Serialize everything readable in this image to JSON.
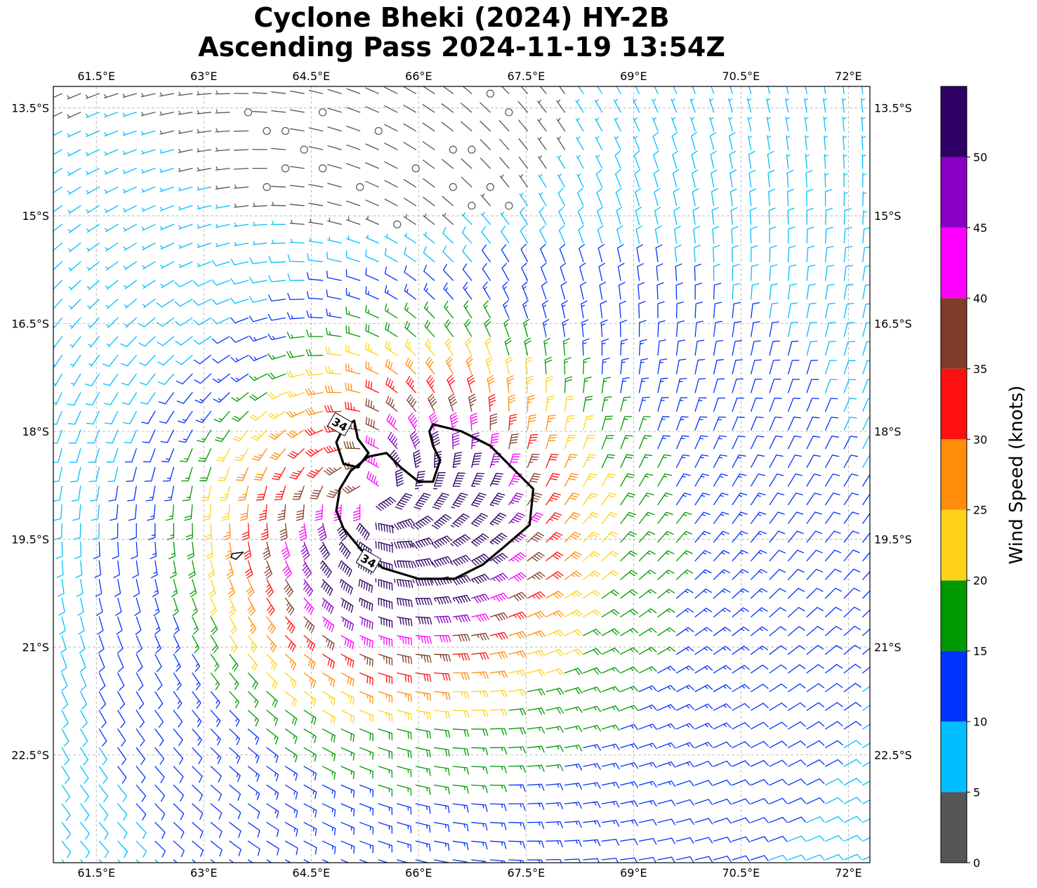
{
  "title": {
    "line1": "Cyclone Bheki (2024) HY-2B",
    "line2": "Ascending Pass 2024-11-19 13:54Z"
  },
  "map": {
    "lon_range": [
      60.9,
      72.3
    ],
    "lat_range": [
      -24.0,
      -13.2
    ],
    "lon_ticks": [
      61.5,
      63,
      64.5,
      66,
      67.5,
      69,
      70.5,
      72
    ],
    "lon_tick_labels": [
      "61.5°E",
      "63°E",
      "64.5°E",
      "66°E",
      "67.5°E",
      "69°E",
      "70.5°E",
      "72°E"
    ],
    "lat_ticks": [
      -13.5,
      -15,
      -16.5,
      -18,
      -19.5,
      -21,
      -22.5
    ],
    "lat_tick_labels": [
      "13.5°S",
      "15°S",
      "16.5°S",
      "18°S",
      "19.5°S",
      "21°S",
      "22.5°S"
    ],
    "gridlines": true,
    "cyclone_center": {
      "lon": 65.4,
      "lat": -19.0
    },
    "wind_field": "cyclonic (clockwise) flow around the center; stronger on the eastern and southern side",
    "contour_level_label": "34",
    "contour_34kt_main": [
      [
        66.2,
        -17.9
      ],
      [
        66.6,
        -18.0
      ],
      [
        67.0,
        -18.2
      ],
      [
        67.3,
        -18.5
      ],
      [
        67.6,
        -18.8
      ],
      [
        67.55,
        -19.3
      ],
      [
        67.2,
        -19.6
      ],
      [
        66.9,
        -19.85
      ],
      [
        66.5,
        -20.05
      ],
      [
        66.0,
        -20.05
      ],
      [
        65.5,
        -19.9
      ],
      [
        65.2,
        -19.65
      ],
      [
        64.95,
        -19.35
      ],
      [
        64.85,
        -19.1
      ],
      [
        64.9,
        -18.8
      ],
      [
        65.05,
        -18.55
      ],
      [
        65.3,
        -18.35
      ],
      [
        65.55,
        -18.3
      ],
      [
        65.75,
        -18.5
      ],
      [
        66.0,
        -18.7
      ],
      [
        66.2,
        -18.7
      ],
      [
        66.3,
        -18.4
      ],
      [
        66.2,
        -18.2
      ],
      [
        66.15,
        -18.0
      ],
      [
        66.2,
        -17.9
      ]
    ],
    "contour_34kt_small": [
      [
        64.95,
        -17.95
      ],
      [
        65.1,
        -17.85
      ],
      [
        65.15,
        -18.1
      ],
      [
        65.3,
        -18.3
      ],
      [
        65.15,
        -18.5
      ],
      [
        64.95,
        -18.45
      ],
      [
        64.85,
        -18.15
      ],
      [
        64.95,
        -17.95
      ]
    ],
    "contour_small_blob": [
      [
        63.4,
        -19.7
      ],
      [
        63.55,
        -19.68
      ],
      [
        63.45,
        -19.78
      ],
      [
        63.38,
        -19.75
      ],
      [
        63.4,
        -19.7
      ]
    ]
  },
  "colorbar": {
    "label": "Wind Speed (knots)",
    "ticks": [
      0,
      5,
      10,
      15,
      20,
      25,
      30,
      35,
      40,
      45,
      50
    ],
    "max": 55,
    "bins": [
      {
        "from": 0,
        "to": 5,
        "color": "#555555"
      },
      {
        "from": 5,
        "to": 10,
        "color": "#00bfff"
      },
      {
        "from": 10,
        "to": 15,
        "color": "#0033ff"
      },
      {
        "from": 15,
        "to": 20,
        "color": "#009900"
      },
      {
        "from": 20,
        "to": 25,
        "color": "#ffd21a"
      },
      {
        "from": 25,
        "to": 30,
        "color": "#ff8c0a"
      },
      {
        "from": 30,
        "to": 35,
        "color": "#ff1010"
      },
      {
        "from": 35,
        "to": 40,
        "color": "#803c28"
      },
      {
        "from": 40,
        "to": 45,
        "color": "#ff00ff"
      },
      {
        "from": 45,
        "to": 50,
        "color": "#8a00c4"
      },
      {
        "from": 50,
        "to": 55,
        "color": "#2e0063"
      }
    ]
  }
}
